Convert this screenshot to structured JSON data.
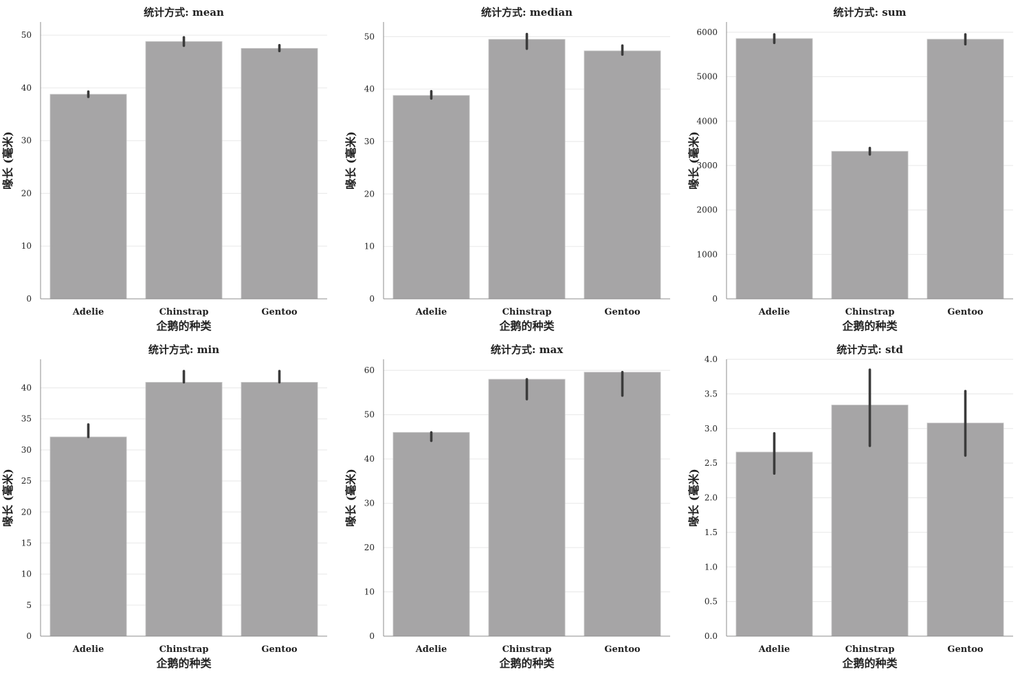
{
  "colors": {
    "bar": "#a6a5a6",
    "bar_edge": "#cccccc",
    "errorbar": "#3b3b3b",
    "grid": "#ebebeb",
    "axis": "#8c8c8c"
  },
  "chart_data": [
    {
      "type": "bar",
      "title": "统计方式: mean",
      "xlabel": "企鹅的种类",
      "ylabel": "喙长 (毫米)",
      "categories": [
        "Adelie",
        "Chinstrap",
        "Gentoo"
      ],
      "values": [
        38.8,
        48.8,
        47.5
      ],
      "ci_low": [
        38.3,
        48.0,
        47.0
      ],
      "ci_high": [
        39.3,
        49.6,
        48.1
      ],
      "ylim": [
        0,
        52.5
      ],
      "yticks": [
        0,
        10,
        20,
        30,
        40,
        50
      ],
      "ytick_labels": [
        "0",
        "10",
        "20",
        "30",
        "40",
        "50"
      ],
      "grid": true
    },
    {
      "type": "bar",
      "title": "统计方式: median",
      "xlabel": "企鹅的种类",
      "ylabel": "喙长 (毫米)",
      "categories": [
        "Adelie",
        "Chinstrap",
        "Gentoo"
      ],
      "values": [
        38.8,
        49.5,
        47.3
      ],
      "ci_low": [
        38.2,
        47.7,
        46.6
      ],
      "ci_high": [
        39.6,
        50.5,
        48.3
      ],
      "ylim": [
        0,
        52.8
      ],
      "yticks": [
        0,
        10,
        20,
        30,
        40,
        50
      ],
      "ytick_labels": [
        "0",
        "10",
        "20",
        "30",
        "40",
        "50"
      ],
      "grid": true
    },
    {
      "type": "bar",
      "title": "统计方式: sum",
      "xlabel": "企鹅的种类",
      "ylabel": "喙长 (毫米)",
      "categories": [
        "Adelie",
        "Chinstrap",
        "Gentoo"
      ],
      "values": [
        5858,
        3321,
        5843
      ],
      "ci_low": [
        5760,
        3250,
        5730
      ],
      "ci_high": [
        5950,
        3395,
        5950
      ],
      "ylim": [
        0,
        6230
      ],
      "yticks": [
        0,
        1000,
        2000,
        3000,
        4000,
        5000,
        6000
      ],
      "ytick_labels": [
        "0",
        "1000",
        "2000",
        "3000",
        "4000",
        "5000",
        "6000"
      ],
      "grid": true
    },
    {
      "type": "bar",
      "title": "统计方式: min",
      "xlabel": "企鹅的种类",
      "ylabel": "喙长 (毫米)",
      "categories": [
        "Adelie",
        "Chinstrap",
        "Gentoo"
      ],
      "values": [
        32.1,
        40.9,
        40.9
      ],
      "ci_low": [
        32.1,
        40.9,
        40.9
      ],
      "ci_high": [
        34.1,
        42.7,
        42.7
      ],
      "ylim": [
        0,
        44.6
      ],
      "yticks": [
        0,
        5,
        10,
        15,
        20,
        25,
        30,
        35,
        40
      ],
      "ytick_labels": [
        "0",
        "5",
        "10",
        "15",
        "20",
        "25",
        "30",
        "35",
        "40"
      ],
      "grid": true
    },
    {
      "type": "bar",
      "title": "统计方式: max",
      "xlabel": "企鹅的种类",
      "ylabel": "喙长 (毫米)",
      "categories": [
        "Adelie",
        "Chinstrap",
        "Gentoo"
      ],
      "values": [
        46.0,
        58.0,
        59.6
      ],
      "ci_low": [
        44.1,
        53.5,
        54.3
      ],
      "ci_high": [
        46.0,
        58.0,
        59.6
      ],
      "ylim": [
        0,
        62.5
      ],
      "yticks": [
        0,
        10,
        20,
        30,
        40,
        50,
        60
      ],
      "ytick_labels": [
        "0",
        "10",
        "20",
        "30",
        "40",
        "50",
        "60"
      ],
      "grid": true
    },
    {
      "type": "bar",
      "title": "统计方式: std",
      "xlabel": "企鹅的种类",
      "ylabel": "喙长 (毫米)",
      "categories": [
        "Adelie",
        "Chinstrap",
        "Gentoo"
      ],
      "values": [
        2.66,
        3.34,
        3.08
      ],
      "ci_low": [
        2.35,
        2.75,
        2.61
      ],
      "ci_high": [
        2.93,
        3.85,
        3.54
      ],
      "ylim": [
        0,
        4.0
      ],
      "yticks": [
        0.0,
        0.5,
        1.0,
        1.5,
        2.0,
        2.5,
        3.0,
        3.5,
        4.0
      ],
      "ytick_labels": [
        "0.0",
        "0.5",
        "1.0",
        "1.5",
        "2.0",
        "2.5",
        "3.0",
        "3.5",
        "4.0"
      ],
      "grid": true
    }
  ]
}
